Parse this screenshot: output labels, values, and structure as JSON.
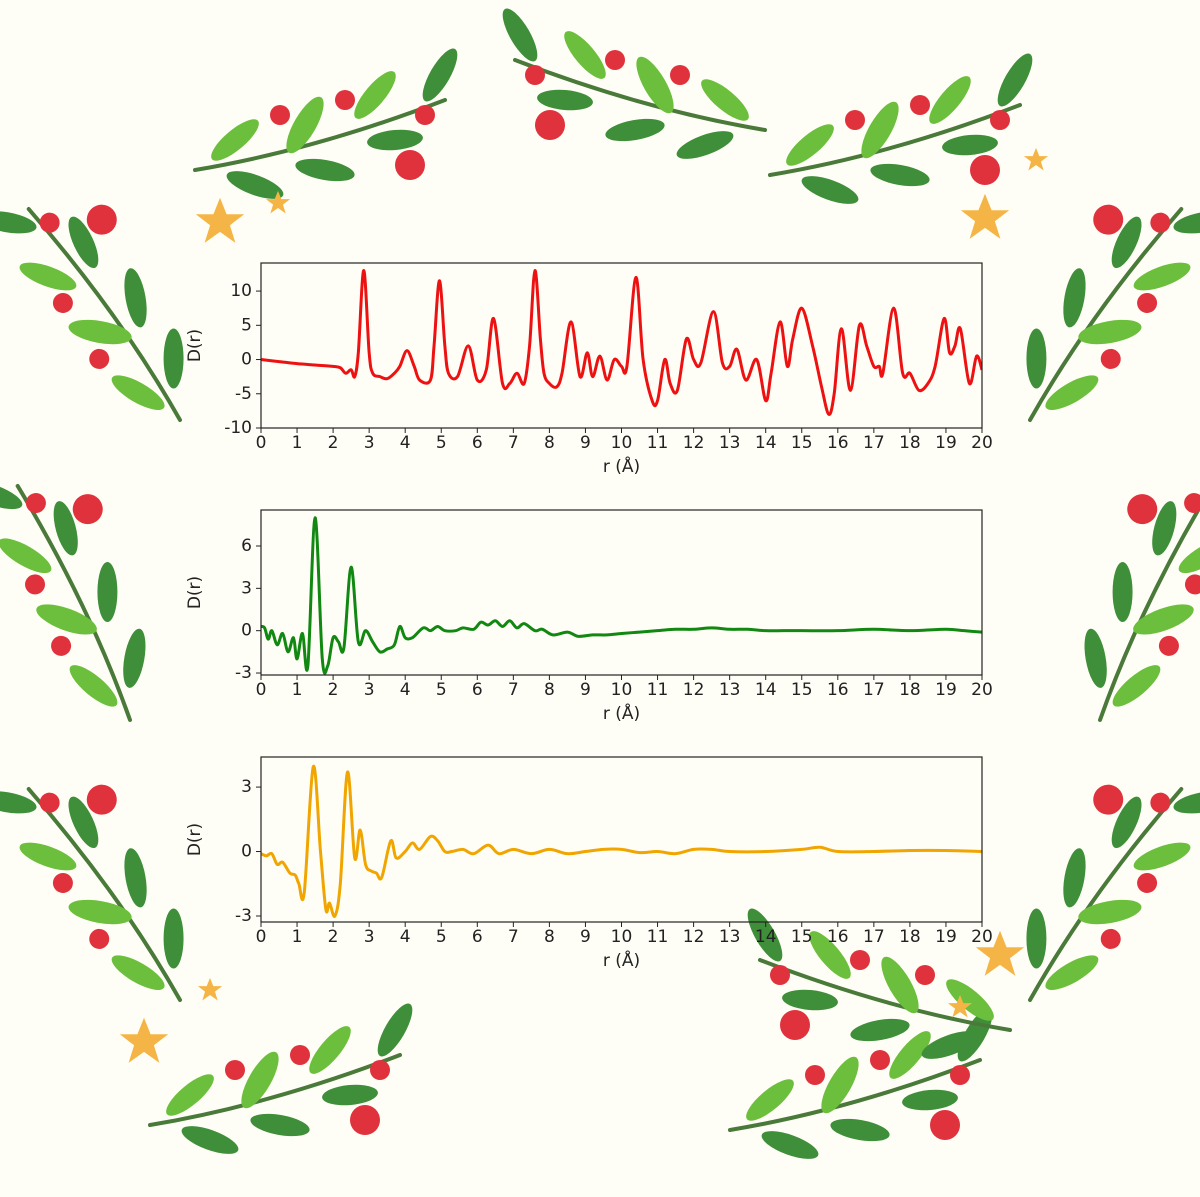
{
  "chart_data": [
    {
      "type": "line",
      "xlabel": "r (Å)",
      "ylabel": "D(r)",
      "color": "#ee1111",
      "xlim": [
        0,
        20
      ],
      "ylim": [
        -10,
        14.1
      ],
      "xticks": [
        0,
        1,
        2,
        3,
        4,
        5,
        6,
        7,
        8,
        9,
        10,
        11,
        12,
        13,
        14,
        15,
        16,
        17,
        18,
        19,
        20
      ],
      "yticks": [
        -10,
        -5,
        0,
        5,
        10
      ],
      "x": [
        0,
        0.5,
        1,
        1.5,
        2,
        2.2,
        2.35,
        2.5,
        2.6,
        2.7,
        2.85,
        3,
        3.1,
        3.3,
        3.5,
        3.7,
        3.85,
        4.05,
        4.25,
        4.4,
        4.7,
        4.8,
        4.95,
        5.1,
        5.2,
        5.45,
        5.75,
        6,
        6.25,
        6.45,
        6.7,
        6.9,
        7.1,
        7.3,
        7.45,
        7.6,
        7.75,
        7.85,
        8,
        8.2,
        8.35,
        8.6,
        8.85,
        9.05,
        9.2,
        9.4,
        9.6,
        9.8,
        10,
        10.15,
        10.4,
        10.6,
        10.85,
        11,
        11.2,
        11.35,
        11.55,
        11.8,
        12,
        12.2,
        12.55,
        12.8,
        13,
        13.2,
        13.45,
        13.75,
        14,
        14.15,
        14.4,
        14.6,
        14.75,
        15,
        15.3,
        15.55,
        15.75,
        15.9,
        16.1,
        16.35,
        16.6,
        16.8,
        17,
        17.15,
        17.25,
        17.55,
        17.8,
        18,
        18.25,
        18.5,
        18.7,
        18.95,
        19.1,
        19.25,
        19.4,
        19.65,
        19.85,
        20
      ],
      "values": [
        0,
        -0.3,
        -0.6,
        -0.8,
        -1,
        -1.2,
        -2,
        -1.5,
        -2.5,
        1,
        13,
        1,
        -2,
        -2.5,
        -2.8,
        -2,
        -1,
        1.3,
        -1,
        -3,
        -3,
        2,
        11.5,
        2,
        -2,
        -2.5,
        2,
        -3,
        -1.5,
        6,
        -3.5,
        -3.5,
        -2,
        -3.5,
        2,
        13,
        3,
        -2,
        -3.5,
        -4,
        -2,
        5.5,
        -2.5,
        1,
        -2.5,
        0.5,
        -3,
        0,
        -1,
        -1,
        12,
        0,
        -6,
        -6,
        0,
        -3.5,
        -4.5,
        3,
        0,
        -0.5,
        7,
        -0.5,
        -1,
        1.5,
        -3,
        0,
        -6,
        -2,
        5.5,
        -1,
        3,
        7.5,
        2,
        -4,
        -8,
        -5,
        4.5,
        -4.5,
        5,
        2,
        -1,
        -1,
        -2,
        7.5,
        -2,
        -2,
        -4.5,
        -3.5,
        -1,
        6,
        1,
        2,
        4.5,
        -3.5,
        0.5,
        -1.5
      ]
    },
    {
      "type": "line",
      "xlabel": "r (Å)",
      "ylabel": "D(r)",
      "color": "#118811",
      "xlim": [
        0,
        20
      ],
      "ylim": [
        -3.14,
        8.55
      ],
      "xticks": [
        0,
        1,
        2,
        3,
        4,
        5,
        6,
        7,
        8,
        9,
        10,
        11,
        12,
        13,
        14,
        15,
        16,
        17,
        18,
        19,
        20
      ],
      "yticks": [
        -3,
        0,
        3,
        6
      ],
      "x": [
        0,
        0.1,
        0.2,
        0.3,
        0.45,
        0.6,
        0.75,
        0.9,
        1,
        1.15,
        1.3,
        1.5,
        1.7,
        1.85,
        2,
        2.15,
        2.3,
        2.5,
        2.7,
        2.9,
        3.1,
        3.3,
        3.5,
        3.7,
        3.85,
        4,
        4.2,
        4.5,
        4.7,
        4.9,
        5.1,
        5.4,
        5.6,
        5.9,
        6.1,
        6.3,
        6.5,
        6.7,
        6.9,
        7.1,
        7.3,
        7.6,
        7.8,
        8.1,
        8.5,
        8.8,
        9.2,
        9.6,
        10,
        10.5,
        11,
        11.5,
        12,
        12.5,
        13,
        13.5,
        14,
        14.5,
        15,
        16,
        17,
        18,
        19,
        19.5,
        20
      ],
      "values": [
        0.3,
        0.2,
        -0.6,
        0,
        -1,
        -0.2,
        -1.5,
        -0.5,
        -2,
        -0.2,
        -2.5,
        8,
        -2,
        -2.5,
        -0.5,
        -0.8,
        -1.2,
        4.5,
        -0.8,
        0,
        -0.8,
        -1.5,
        -1.3,
        -1,
        0.3,
        -0.5,
        -0.5,
        0.2,
        0,
        0.3,
        0,
        0,
        0.2,
        0.1,
        0.6,
        0.4,
        0.7,
        0.3,
        0.7,
        0.2,
        0.5,
        0,
        0.1,
        -0.3,
        -0.1,
        -0.4,
        -0.3,
        -0.3,
        -0.2,
        -0.1,
        0,
        0.1,
        0.1,
        0.2,
        0.1,
        0.1,
        0,
        0,
        0,
        0,
        0.1,
        0,
        0.1,
        0,
        -0.1
      ]
    },
    {
      "type": "line",
      "xlabel": "r (Å)",
      "ylabel": "D(r)",
      "color": "#f0a500",
      "xlim": [
        0,
        20
      ],
      "ylim": [
        -3.28,
        4.4
      ],
      "xticks": [
        0,
        1,
        2,
        3,
        4,
        5,
        6,
        7,
        8,
        9,
        10,
        11,
        12,
        13,
        14,
        15,
        16,
        17,
        18,
        19,
        20
      ],
      "yticks": [
        -3,
        0,
        3
      ],
      "x": [
        0,
        0.15,
        0.3,
        0.45,
        0.6,
        0.8,
        0.95,
        1.05,
        1.2,
        1.45,
        1.65,
        1.8,
        1.9,
        2.05,
        2.2,
        2.4,
        2.6,
        2.75,
        2.9,
        3.05,
        3.2,
        3.35,
        3.6,
        3.75,
        4,
        4.2,
        4.4,
        4.7,
        4.9,
        5.1,
        5.3,
        5.6,
        5.9,
        6.3,
        6.6,
        7,
        7.5,
        8,
        8.5,
        9,
        9.5,
        10,
        10.5,
        11,
        11.5,
        12,
        12.5,
        13,
        14,
        15,
        15.5,
        16,
        17,
        18,
        19,
        20
      ],
      "values": [
        -0.1,
        -0.2,
        -0.1,
        -0.6,
        -0.5,
        -1,
        -1.1,
        -1.5,
        -1.9,
        3.95,
        0,
        -2.7,
        -2.4,
        -3,
        -1.5,
        3.7,
        -0.3,
        1,
        -0.6,
        -0.9,
        -1,
        -1.2,
        0.5,
        -0.3,
        0,
        0.4,
        0.1,
        0.7,
        0.5,
        0,
        0,
        0.1,
        -0.1,
        0.3,
        -0.1,
        0.1,
        -0.1,
        0.1,
        -0.1,
        0,
        0.1,
        0.1,
        -0.05,
        0,
        -0.1,
        0.1,
        0.1,
        0,
        0,
        0.1,
        0.2,
        0,
        0,
        0.05,
        0.05,
        0
      ]
    }
  ]
}
